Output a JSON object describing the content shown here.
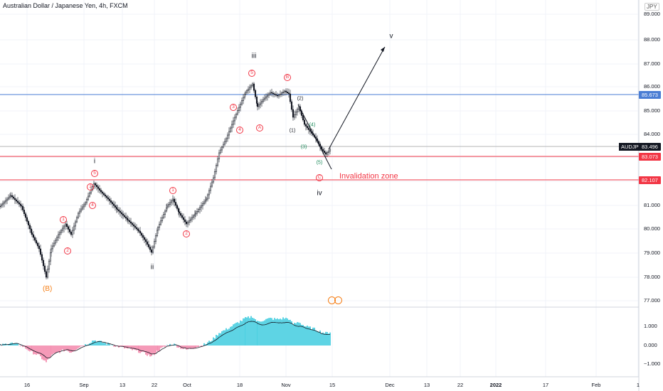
{
  "header": {
    "title": "Australian Dollar / Japanese Yen, 4h, FXCM",
    "currency": "JPY"
  },
  "price_axis": {
    "ticks": [
      "89.000",
      "88.000",
      "87.000",
      "86.000",
      "85.000",
      "84.000",
      "83.000",
      "82.000",
      "81.000",
      "80.000",
      "79.000",
      "78.000",
      "77.000"
    ]
  },
  "oscillator_axis": {
    "ticks": [
      "1.000",
      "0.000",
      "−1.000"
    ]
  },
  "time_axis": {
    "ticks": [
      "16",
      "Sep",
      "13",
      "22",
      "Oct",
      "18",
      "Nov",
      "15",
      "Dec",
      "13",
      "22",
      "2022",
      "17",
      "Feb",
      "1"
    ]
  },
  "price_labels": {
    "resistance": "85.673",
    "symbol": "AUDJPY",
    "current": "83.496",
    "support1": "83.073",
    "support2": "82.107"
  },
  "waves": {
    "i": "i",
    "ii": "ii",
    "iii": "iii",
    "iv": "iv",
    "v": "v",
    "B_major": "(B)",
    "invalidation": "Invalidation zone",
    "circled": [
      "1",
      "2",
      "3",
      "4",
      "5",
      "1",
      "2",
      "3",
      "4",
      "5",
      "A",
      "B",
      "C"
    ],
    "sub": [
      "(1)",
      "(2)",
      "(3)",
      "(4)",
      "(5)"
    ]
  },
  "colors": {
    "resistance_line": "#4a7dd4",
    "support_line": "#f23645",
    "current_line": "#9e9e9e",
    "wave_circle": "#f23645",
    "osc_up": "#4dd0e1",
    "osc_down": "#f48fb1"
  },
  "icons": {
    "event_marker": "event-circle-icon"
  }
}
